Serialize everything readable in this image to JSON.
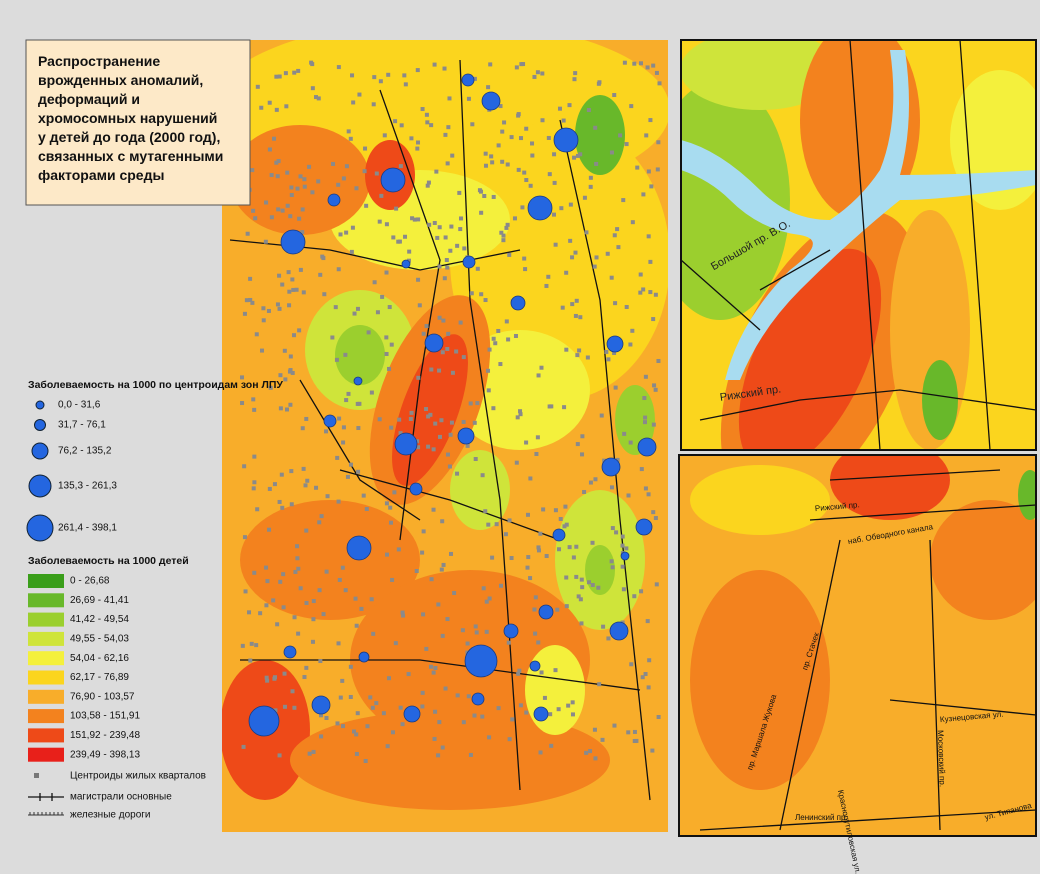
{
  "title": {
    "lines": [
      "Распространение",
      "врожденных аномалий,",
      "деформаций и",
      "хромосомных нарушений",
      "у детей до года (2000 год),",
      "связанных с мутагенными",
      "факторами среды"
    ]
  },
  "circle_legend": {
    "title": "Заболеваемость на 1000 по центроидам зон ЛПУ",
    "classes": [
      "0,0 - 31,6",
      "31,7 - 76,1",
      "76,2 - 135,2",
      "135,3 - 261,3",
      "261,4 - 398,1"
    ],
    "color": "#2466e0"
  },
  "color_legend": {
    "title": "Заболеваемость на 1000 детей",
    "classes": [
      {
        "label": "0 - 26,68",
        "color": "#3a9e1a"
      },
      {
        "label": "26,69 - 41,41",
        "color": "#68b82a"
      },
      {
        "label": "41,42 - 49,54",
        "color": "#9bcf2e"
      },
      {
        "label": "49,55 - 54,03",
        "color": "#cfe43a"
      },
      {
        "label": "54,04 - 62,16",
        "color": "#f4f03c"
      },
      {
        "label": "62,17 - 76,89",
        "color": "#fbd51e"
      },
      {
        "label": "76,90 - 103,57",
        "color": "#f8ad2a"
      },
      {
        "label": "103,58 - 151,91",
        "color": "#f3821e"
      },
      {
        "label": "151,92 - 239,48",
        "color": "#ee4a18"
      },
      {
        "label": "239,49 - 398,13",
        "color": "#e8201a"
      }
    ]
  },
  "symbols": [
    "Центроиды жилых кварталов",
    "магистрали основные",
    "железные дороги"
  ],
  "inset_north": {
    "labels": [
      "Большой пр. В.О.",
      "Рижский пр."
    ]
  },
  "inset_south": {
    "labels": [
      "Рижский пр.",
      "наб. Обводного канала",
      "пр. Стачек",
      "пр. Маршала Жукова",
      "Краснопутиловская ул.",
      "Московский пр.",
      "Кузнецовская ул.",
      "Ленинский пр.",
      "ул. Типанова"
    ]
  }
}
